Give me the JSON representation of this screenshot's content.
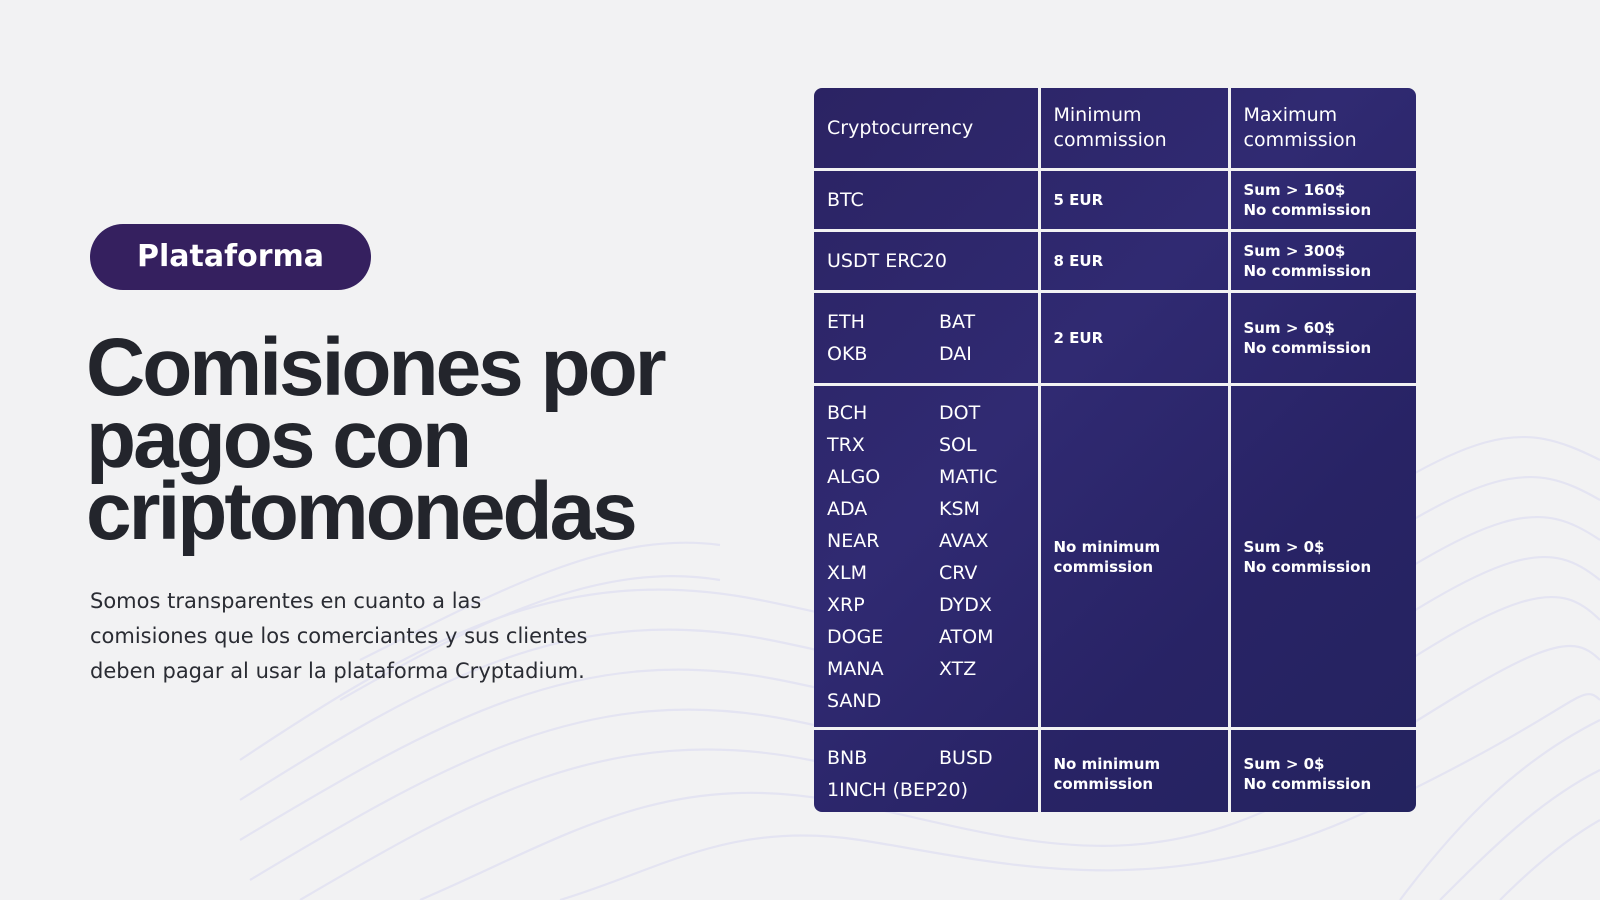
{
  "badge": {
    "label": "Plataforma"
  },
  "heading": {
    "line1": "Comisiones por",
    "line2": "pagos con",
    "line3": "criptomonedas"
  },
  "description": {
    "line1": "Somos transparentes en cuanto a las",
    "line2": "comisiones que los comerciantes y sus clientes",
    "line3": "deben pagar al usar la plataforma Cryptadium."
  },
  "colors": {
    "background": "#f2f2f3",
    "badge_bg": "#35205f",
    "table_bg": "#2b2363",
    "title_text": "#23252c"
  },
  "table": {
    "headers": {
      "crypto": "Cryptocurrency",
      "min_line1": "Minimum",
      "min_line2": "commission",
      "max_line1": "Maximum",
      "max_line2": "commission"
    },
    "rows": [
      {
        "coins": [
          "BTC"
        ],
        "min": [
          "5 EUR"
        ],
        "max": [
          "Sum > 160$",
          "No commission"
        ]
      },
      {
        "coins": [
          "USDT ERC20"
        ],
        "min": [
          "8 EUR"
        ],
        "max": [
          "Sum > 300$",
          "No commission"
        ]
      },
      {
        "coins": [
          "ETH",
          "BAT",
          "OKB",
          "DAI"
        ],
        "min": [
          "2 EUR"
        ],
        "max": [
          "Sum > 60$",
          "No commission"
        ]
      },
      {
        "coins": [
          "BCH",
          "DOT",
          "TRX",
          "SOL",
          "ALGO",
          "MATIC",
          "ADA",
          "KSM",
          "NEAR",
          "AVAX",
          "XLM",
          "CRV",
          "XRP",
          "DYDX",
          "DOGE",
          "ATOM",
          "MANA",
          "XTZ",
          "SAND"
        ],
        "min": [
          "No minimum",
          "commission"
        ],
        "max": [
          "Sum > 0$",
          "No commission"
        ]
      },
      {
        "coins": [
          "BNB",
          "BUSD",
          "1INCH (BEP20)"
        ],
        "min": [
          "No minimum",
          "commission"
        ],
        "max": [
          "Sum > 0$",
          "No commission"
        ]
      }
    ]
  }
}
